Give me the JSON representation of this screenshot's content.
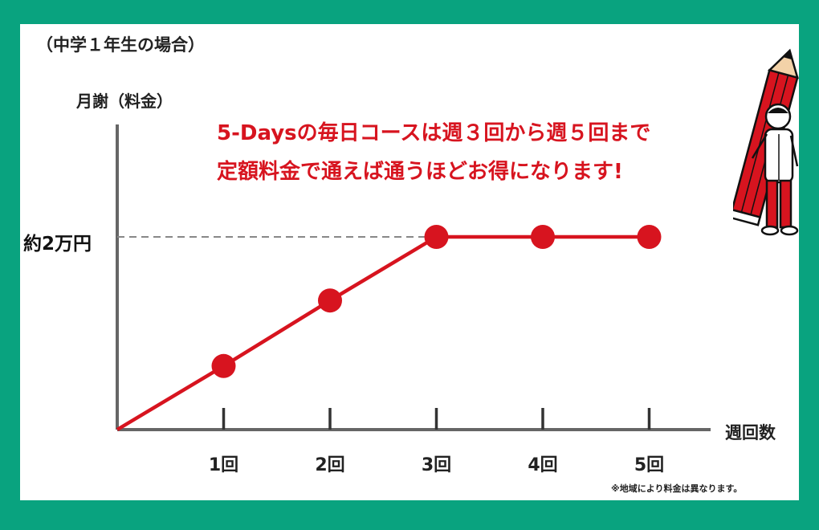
{
  "header": {
    "subtitle": "（中学１年生の場合）",
    "headline_line1": "5-Daysの毎日コースは週３回から週５回まで",
    "headline_line2": "定額料金で通えば通うほどお得になります!"
  },
  "footnote": "※地域により料金は異なります。",
  "colors": {
    "frame": "#09a37f",
    "accent_red": "#d7141f",
    "axis": "#666666",
    "guide": "#888888"
  },
  "chart_data": {
    "type": "line",
    "ylabel": "月謝（料金）",
    "xlabel": "週回数",
    "categories": [
      "1回",
      "2回",
      "3回",
      "4回",
      "5回"
    ],
    "x": [
      1,
      2,
      3,
      4,
      5
    ],
    "values": [
      0.33,
      0.67,
      1,
      1,
      1
    ],
    "origin": [
      0,
      0
    ],
    "ylim": [
      0,
      1.6
    ],
    "y_tick_labels": [
      {
        "value": 1,
        "label": "約2万円"
      }
    ],
    "reference_line": {
      "y": 1,
      "style": "dashed"
    },
    "markers": true,
    "grid": false,
    "legend": "none"
  },
  "illustration": {
    "icon": "pencil-mascot-icon"
  }
}
